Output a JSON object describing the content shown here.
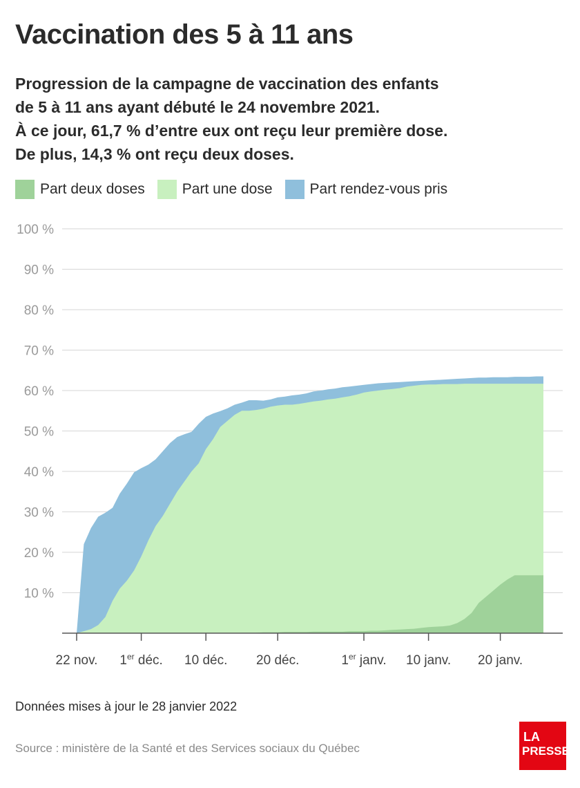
{
  "header": {
    "title": "Vaccination des 5 à 11 ans",
    "subtitle_lines": [
      "Progression de la campagne de vaccination des enfants",
      "de 5 à 11 ans ayant débuté le 24 novembre 2021.",
      "À ce jour, 61,7 % d’entre eux ont reçu leur première dose.",
      "De plus, 14,3 % ont reçu deux doses."
    ]
  },
  "legend": [
    {
      "label": "Part deux doses",
      "color": "#9fd29a"
    },
    {
      "label": "Part une dose",
      "color": "#c8f0bf"
    },
    {
      "label": "Part rendez-vous pris",
      "color": "#8fbfdc"
    }
  ],
  "footer": {
    "updated": "Données mises à jour le 28 janvier 2022",
    "source": "Source : ministère de la Santé et des Services sociaux du Québec",
    "logo": "LA PRESSE",
    "logo_color": "#e30613"
  },
  "chart_data": {
    "type": "area",
    "ylim": [
      0,
      100
    ],
    "yticks": [
      10,
      20,
      30,
      40,
      50,
      60,
      70,
      80,
      90,
      100
    ],
    "ytick_labels": [
      "10 %",
      "20 %",
      "30 %",
      "40 %",
      "50 %",
      "60 %",
      "70 %",
      "80 %",
      "90 %",
      "100 %"
    ],
    "xticks": [
      {
        "day": 0,
        "label": "22 nov.",
        "sup": ""
      },
      {
        "day": 9,
        "label": " déc.",
        "prefix": "1",
        "sup": "er"
      },
      {
        "day": 18,
        "label": "10 déc.",
        "sup": ""
      },
      {
        "day": 28,
        "label": "20 déc.",
        "sup": ""
      },
      {
        "day": 40,
        "label": " janv.",
        "prefix": "1",
        "sup": "er"
      },
      {
        "day": 49,
        "label": "10 janv.",
        "sup": ""
      },
      {
        "day": 59,
        "label": "20 janv.",
        "sup": ""
      }
    ],
    "x_dates": [
      "2021-11-22",
      "2021-11-23",
      "2021-11-24",
      "2021-11-25",
      "2021-11-26",
      "2021-11-27",
      "2021-11-28",
      "2021-11-29",
      "2021-11-30",
      "2021-12-01",
      "2021-12-02",
      "2021-12-03",
      "2021-12-04",
      "2021-12-05",
      "2021-12-06",
      "2021-12-07",
      "2021-12-08",
      "2021-12-09",
      "2021-12-10",
      "2021-12-11",
      "2021-12-12",
      "2021-12-13",
      "2021-12-14",
      "2021-12-15",
      "2021-12-16",
      "2021-12-17",
      "2021-12-18",
      "2021-12-19",
      "2021-12-20",
      "2021-12-21",
      "2021-12-22",
      "2021-12-23",
      "2021-12-24",
      "2021-12-25",
      "2021-12-26",
      "2021-12-27",
      "2021-12-28",
      "2021-12-29",
      "2021-12-30",
      "2021-12-31",
      "2022-01-01",
      "2022-01-02",
      "2022-01-03",
      "2022-01-04",
      "2022-01-05",
      "2022-01-06",
      "2022-01-07",
      "2022-01-08",
      "2022-01-09",
      "2022-01-10",
      "2022-01-11",
      "2022-01-12",
      "2022-01-13",
      "2022-01-14",
      "2022-01-15",
      "2022-01-16",
      "2022-01-17",
      "2022-01-18",
      "2022-01-19",
      "2022-01-20",
      "2022-01-21",
      "2022-01-22",
      "2022-01-23",
      "2022-01-24",
      "2022-01-25",
      "2022-01-26"
    ],
    "series": [
      {
        "name": "Part rendez-vous pris",
        "color": "#8fbfdc",
        "values": [
          0,
          22,
          26,
          28.8,
          29.8,
          31,
          34.5,
          37,
          39.8,
          40.8,
          41.7,
          43,
          45,
          47,
          48.5,
          49.2,
          49.8,
          51.8,
          53.5,
          54.3,
          54.9,
          55.6,
          56.5,
          57,
          57.6,
          57.6,
          57.5,
          57.8,
          58.3,
          58.5,
          58.8,
          59,
          59.3,
          59.8,
          60,
          60.3,
          60.5,
          60.8,
          61,
          61.2,
          61.4,
          61.6,
          61.8,
          61.9,
          62,
          62.1,
          62.2,
          62.3,
          62.4,
          62.5,
          62.6,
          62.7,
          62.8,
          62.9,
          63,
          63.1,
          63.2,
          63.2,
          63.3,
          63.3,
          63.3,
          63.4,
          63.4,
          63.4,
          63.5,
          63.5
        ]
      },
      {
        "name": "Part une dose",
        "color": "#c8f0bf",
        "values": [
          0,
          0.5,
          1,
          2,
          4,
          8,
          11,
          13,
          15.5,
          19,
          23,
          26.5,
          29,
          32,
          35,
          37.5,
          40,
          42,
          45.5,
          48,
          51,
          52.5,
          54,
          55,
          55,
          55.2,
          55.5,
          56,
          56.3,
          56.5,
          56.5,
          56.7,
          57,
          57.3,
          57.5,
          57.8,
          58,
          58.3,
          58.6,
          59,
          59.5,
          59.8,
          60,
          60.2,
          60.4,
          60.6,
          61,
          61.2,
          61.4,
          61.5,
          61.5,
          61.6,
          61.6,
          61.6,
          61.7,
          61.7,
          61.7,
          61.7,
          61.7,
          61.7,
          61.7,
          61.7,
          61.7,
          61.7,
          61.7,
          61.7
        ]
      },
      {
        "name": "Part deux doses",
        "color": "#9fd29a",
        "values": [
          0,
          0,
          0,
          0,
          0,
          0,
          0,
          0,
          0,
          0,
          0,
          0,
          0,
          0,
          0,
          0,
          0,
          0,
          0,
          0,
          0,
          0,
          0,
          0.1,
          0.1,
          0.1,
          0.2,
          0.2,
          0.2,
          0.3,
          0.3,
          0.3,
          0.3,
          0.4,
          0.4,
          0.4,
          0.4,
          0.4,
          0.5,
          0.5,
          0.5,
          0.6,
          0.6,
          0.7,
          0.8,
          0.9,
          1,
          1.1,
          1.3,
          1.5,
          1.6,
          1.7,
          1.9,
          2.5,
          3.5,
          5,
          7.5,
          9,
          10.5,
          12,
          13.3,
          14.3,
          14.3,
          14.3,
          14.3,
          14.3
        ]
      }
    ]
  }
}
